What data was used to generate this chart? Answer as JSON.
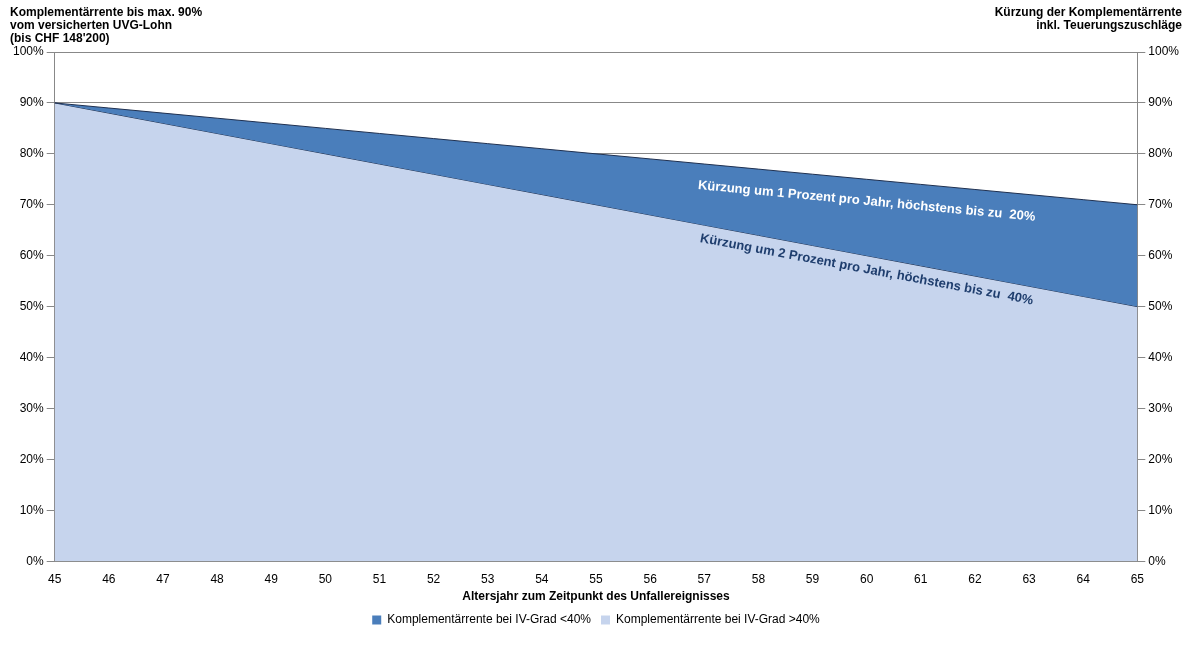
{
  "chart_data": {
    "type": "area",
    "ylabel": "Komplementärrente bis max. 90%\nvom versicherten UVG-Lohn\n(bis CHF 148'200)",
    "y2label": "Kürzung der Komplementärrente\ninkl. Teuerungszuschläge",
    "xlabel": "Altersjahr zum Zeitpunkt des Unfallereignisses",
    "categories": [
      "45",
      "46",
      "47",
      "48",
      "49",
      "50",
      "51",
      "52",
      "53",
      "54",
      "55",
      "56",
      "57",
      "58",
      "59",
      "60",
      "61",
      "62",
      "63",
      "64",
      "65"
    ],
    "series": [
      {
        "name": "Komplementärrente bei IV-Grad <40%",
        "color": "#4a7ebb",
        "values": [
          90,
          89,
          88,
          87,
          86,
          85,
          84,
          83,
          82,
          81,
          80,
          79,
          78,
          77,
          76,
          75,
          74,
          73,
          72,
          71,
          70
        ]
      },
      {
        "name": "Komplementärrente bei IV-Grad >40%",
        "color": "#c6d4ed",
        "values": [
          90,
          88,
          86,
          84,
          82,
          80,
          78,
          76,
          74,
          72,
          70,
          68,
          66,
          64,
          62,
          60,
          58,
          56,
          54,
          52,
          50
        ]
      }
    ],
    "ylim": [
      0,
      100
    ],
    "yticks": [
      {
        "value": 0,
        "label": "0%"
      },
      {
        "value": 10,
        "label": "10%"
      },
      {
        "value": 20,
        "label": "20%"
      },
      {
        "value": 30,
        "label": "30%"
      },
      {
        "value": 40,
        "label": "40%"
      },
      {
        "value": 50,
        "label": "50%"
      },
      {
        "value": 60,
        "label": "60%"
      },
      {
        "value": 70,
        "label": "70%"
      },
      {
        "value": 80,
        "label": "80%"
      },
      {
        "value": 90,
        "label": "90%"
      },
      {
        "value": 100,
        "label": "100%"
      }
    ],
    "y2lim": [
      0,
      100
    ],
    "y2ticks": [
      {
        "value": 0,
        "label": "0%"
      },
      {
        "value": 10,
        "label": "10%"
      },
      {
        "value": 20,
        "label": "20%"
      },
      {
        "value": 30,
        "label": "30%"
      },
      {
        "value": 40,
        "label": "40%"
      },
      {
        "value": 50,
        "label": "50%"
      },
      {
        "value": 60,
        "label": "60%"
      },
      {
        "value": 70,
        "label": "70%"
      },
      {
        "value": 80,
        "label": "80%"
      },
      {
        "value": 90,
        "label": "90%"
      },
      {
        "value": 100,
        "label": "100%"
      }
    ],
    "annotations": [
      "Kürzung um 1 Prozent pro Jahr, höchstens bis zu  20%",
      "Kürzung um 2 Prozent pro Jahr, höchstens bis zu  40%"
    ],
    "grid": "y",
    "legend": "bottom",
    "marker": "none"
  }
}
